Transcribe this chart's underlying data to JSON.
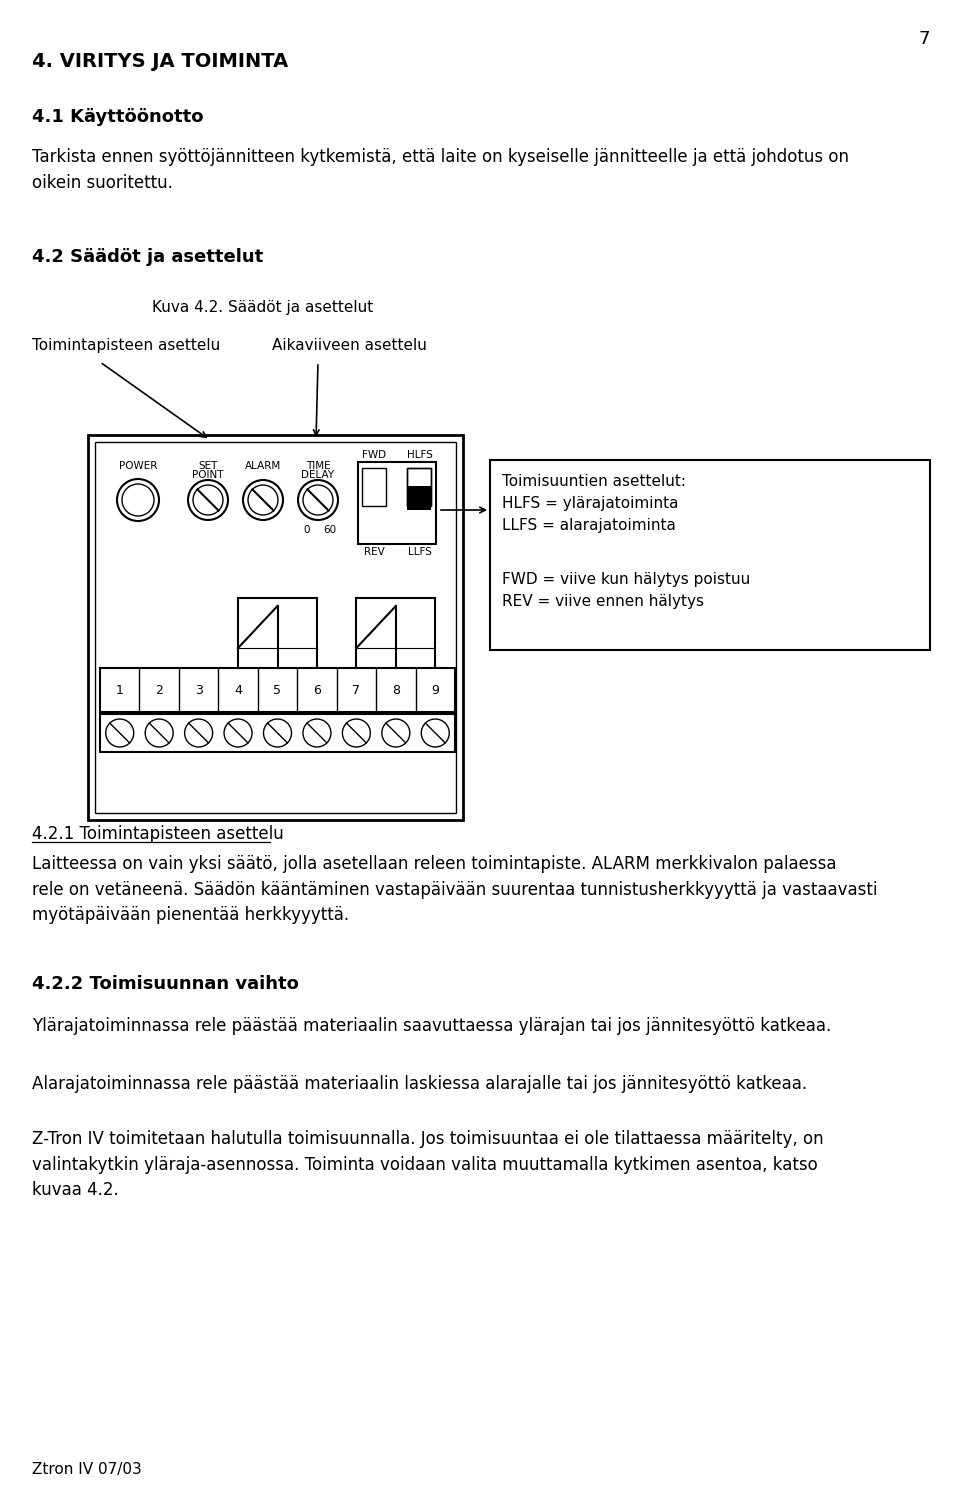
{
  "page_number": "7",
  "bg_color": "#ffffff",
  "text_color": "#000000",
  "title1": "4. VIRITYS JA TOIMINTA",
  "title2": "4.1 Käyttöönotto",
  "para1": "Tarkista ennen syöttöjännitteen kytkemistä, että laite on kyseiselle jännitteelle ja että johdotus on\noikein suoritettu.",
  "title3": "4.2 Säädöt ja asettelut",
  "fig_caption": "Kuva 4.2. Säädöt ja asettelut",
  "label_toiminta": "Toimintapisteen asettelu",
  "label_aika": "Aikaviiveen asettelu",
  "scale_0": "0",
  "scale_60": "60",
  "switch_top_left": "FWD",
  "switch_top_right": "HLFS",
  "switch_bot_left": "REV",
  "switch_bot_right": "LLFS",
  "terminal_numbers": [
    "1",
    "2",
    "3",
    "4",
    "5",
    "6",
    "7",
    "8",
    "9"
  ],
  "info_box_lines": [
    "Toimisuuntien asettelut:",
    "HLFS = ylärajatoiminta",
    "LLFS = alarajatoiminta",
    "",
    "FWD = viive kun hälytys poistuu",
    "REV = viive ennen hälytys"
  ],
  "section421": "4.2.1 Toimintapisteen asettelu",
  "para421": "Laitteessa on vain yksi säätö, jolla asetellaan releen toimintapiste. ALARM merkkivalon palaessa\nrele on vetäneenä. Säädön kääntäminen vastapäivään suurentaa tunnistusherkkyyyttä ja vastaavasti\nmyötäpäivään pienentää herkkyyyttä.",
  "section422": "4.2.2 Toimisuunnan vaihto",
  "para422a": "Ylärajatoiminnassa rele päästää materiaalin saavuttaessa ylärajan tai jos jännitesyöttö katkeaa.",
  "para422b": "Alarajatoiminnassa rele päästää materiaalin laskiessa alarajalle tai jos jännitesyöttö katkeaa.",
  "para422c": "Z-Tron IV toimitetaan halutulla toimisuunnalla. Jos toimisuuntaa ei ole tilattaessa määritelty, on\nvalintakytkin yläraja-asennossa. Toiminta voidaan valita muuttamalla kytkimen asentoa, katso\nkuvaa 4.2.",
  "footer": "Ztron IV 07/03",
  "knob_power_label": "POWER",
  "knob_set_label1": "SET",
  "knob_set_label2": "POINT",
  "knob_alarm_label": "ALARM",
  "knob_time_label1": "TIME",
  "knob_time_label2": "DELAY"
}
